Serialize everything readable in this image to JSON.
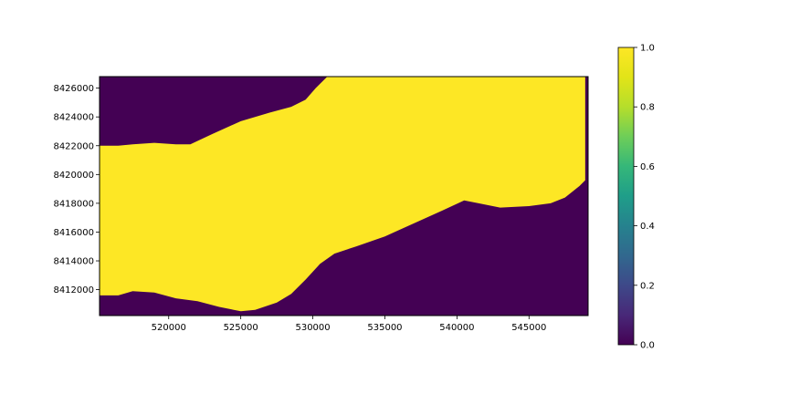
{
  "chart_data": {
    "type": "heatmap",
    "title": "",
    "xlabel": "",
    "ylabel": "",
    "xlim": [
      515200,
      549100
    ],
    "ylim": [
      8410200,
      8426800
    ],
    "x_ticks": [
      520000,
      525000,
      530000,
      535000,
      540000,
      545000
    ],
    "x_tick_labels": [
      "520000",
      "525000",
      "530000",
      "535000",
      "540000",
      "545000"
    ],
    "y_ticks": [
      8412000,
      8414000,
      8416000,
      8418000,
      8420000,
      8422000,
      8424000,
      8426000
    ],
    "y_tick_labels": [
      "8412000",
      "8414000",
      "8416000",
      "8418000",
      "8420000",
      "8422000",
      "8424000",
      "8426000"
    ],
    "grid": false,
    "colormap": "viridis",
    "value_range": [
      0.0,
      1.0
    ],
    "low_value_color": "#440154",
    "high_value_color": "#fde725",
    "description_values": "binary raster: cells inside band = 1.0, outside = 0.0",
    "band_upper_boundary": {
      "x": [
        515200,
        516500,
        517500,
        519000,
        520500,
        521500,
        523000,
        525000,
        527000,
        528500,
        529500,
        530200,
        531000,
        549100
      ],
      "y": [
        8422000,
        8422000,
        8422100,
        8422200,
        8422100,
        8422100,
        8422800,
        8423700,
        8424300,
        8424700,
        8425200,
        8426000,
        8426800,
        8426800
      ]
    },
    "band_lower_boundary": {
      "x": [
        515200,
        516500,
        517500,
        519000,
        520500,
        522000,
        523500,
        525000,
        526000,
        527500,
        528500,
        529500,
        530500,
        531500,
        533000,
        535000,
        537000,
        539000,
        540500,
        541500,
        543000,
        545000,
        546500,
        547500,
        548500,
        549100
      ],
      "y": [
        8411600,
        8411600,
        8411900,
        8411800,
        8411400,
        8411200,
        8410800,
        8410500,
        8410600,
        8411100,
        8411700,
        8412700,
        8413800,
        8414500,
        8415000,
        8415700,
        8416600,
        8417500,
        8418200,
        8418000,
        8417700,
        8417800,
        8418000,
        8418400,
        8419200,
        8419800
      ]
    },
    "right_edge_strip": {
      "x_start": 548900,
      "y_top": 8426800,
      "y_bottom": 8419600
    },
    "colorbar": {
      "range": [
        0.0,
        1.0
      ],
      "ticks": [
        0.0,
        0.2,
        0.4,
        0.6,
        0.8,
        1.0
      ],
      "tick_labels": [
        "0.0",
        "0.2",
        "0.4",
        "0.6",
        "0.8",
        "1.0"
      ]
    }
  }
}
